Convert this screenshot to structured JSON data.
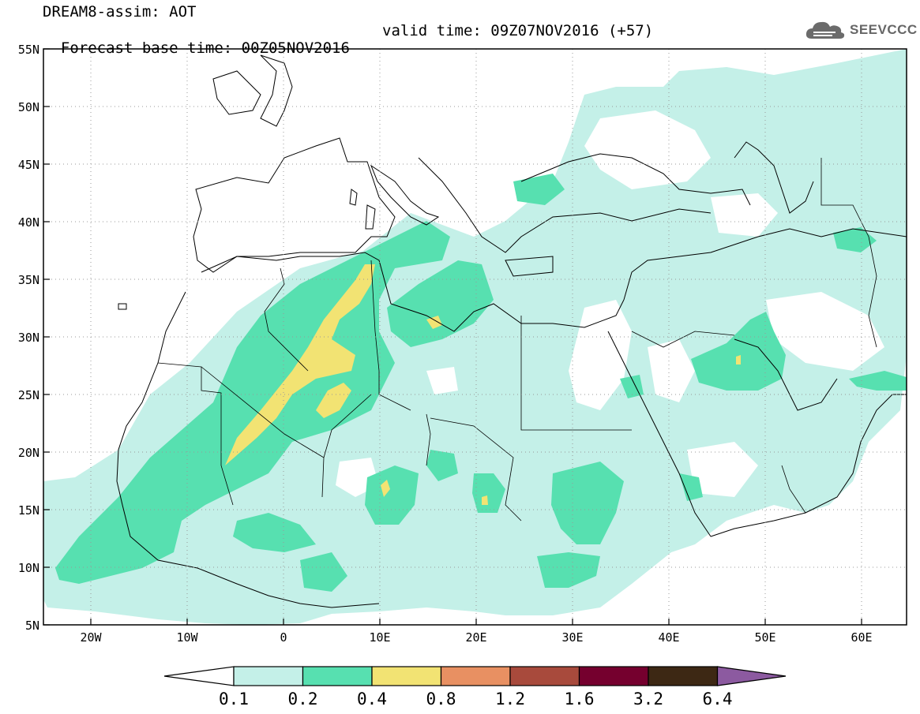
{
  "title": {
    "line1": "DREAM8-assim: AOT",
    "base_time": "Forecast base time: 00Z05NOV2016",
    "valid_time": "valid time: 09Z07NOV2016 (+57)"
  },
  "logo": {
    "text": "SEEVCCC",
    "icon": "cloud-icon"
  },
  "map": {
    "lon_range": [
      -25,
      65
    ],
    "lat_range": [
      5,
      55
    ],
    "lat_labels": [
      "55N",
      "50N",
      "45N",
      "40N",
      "35N",
      "30N",
      "25N",
      "20N",
      "15N",
      "10N",
      "5N"
    ],
    "lon_labels": [
      "20W",
      "10W",
      "0",
      "10E",
      "20E",
      "30E",
      "40E",
      "50E",
      "60E"
    ],
    "grid": true
  },
  "legend": {
    "labels": [
      "0.1",
      "0.2",
      "0.4",
      "0.8",
      "1.2",
      "1.6",
      "3.2",
      "6.4"
    ],
    "colors": [
      "#ffffff",
      "#c4f0e8",
      "#57e0b0",
      "#f2e373",
      "#e89062",
      "#a84a3c",
      "#75002e",
      "#3d2814",
      "#8c5aa0"
    ]
  }
}
